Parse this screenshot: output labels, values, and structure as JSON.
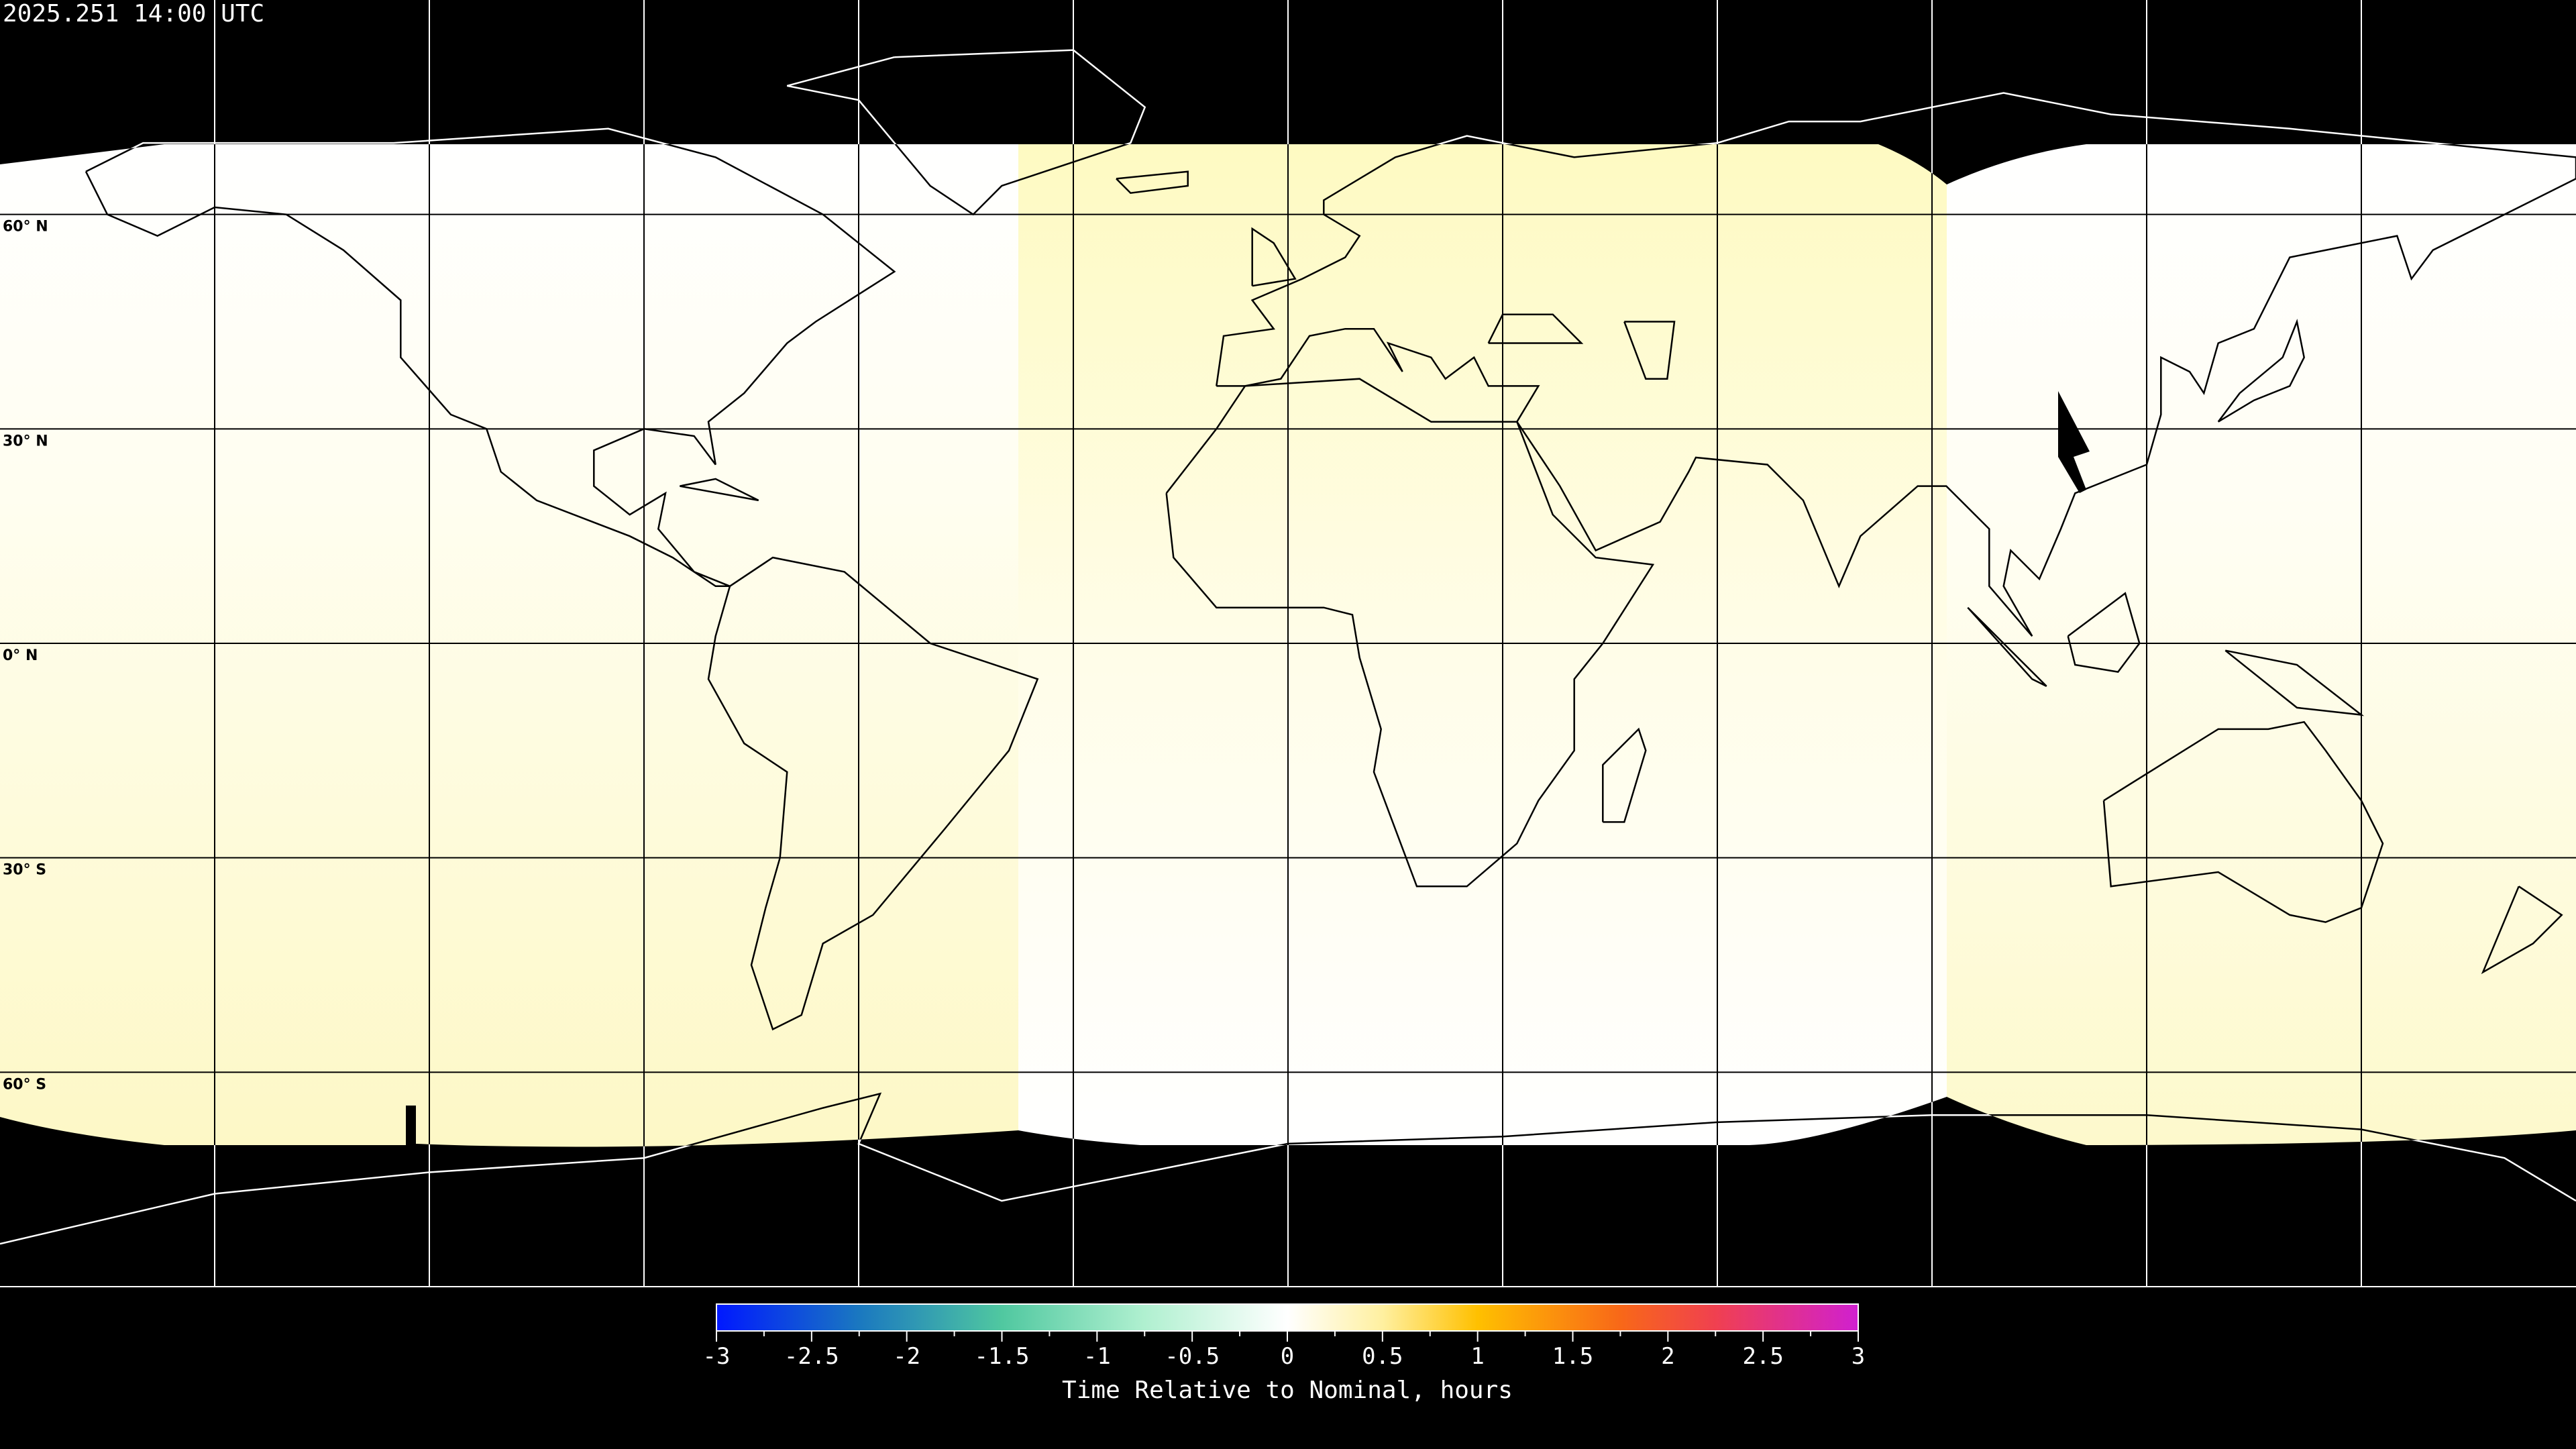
{
  "title": "2025.251 14:00 UTC",
  "map": {
    "projection": "equirectangular",
    "lon_range": [
      -180,
      180
    ],
    "lat_range": [
      -90,
      90
    ],
    "grid_spacing_deg": 30,
    "lat_labels": [
      "60° N",
      "30° N",
      "0° N",
      "30° S",
      "60° S"
    ],
    "no_data_color": "#000000",
    "coverage_colors": {
      "near_zero": "#ffffff",
      "slightly_positive": "#fdf9c8"
    }
  },
  "colorbar": {
    "label": "Time Relative to Nominal, hours",
    "range": [
      -3,
      3
    ],
    "tick_labels": [
      "-3",
      "-2.5",
      "-2",
      "-1.5",
      "-1",
      "-0.5",
      "0",
      "0.5",
      "1",
      "1.5",
      "2",
      "2.5",
      "3"
    ],
    "stops": [
      {
        "value": -3,
        "color": "#0018ff"
      },
      {
        "value": -2.25,
        "color": "#1a78c0"
      },
      {
        "value": -1.5,
        "color": "#50c8a0"
      },
      {
        "value": -0.75,
        "color": "#b0f0d0"
      },
      {
        "value": 0,
        "color": "#ffffff"
      },
      {
        "value": 0.5,
        "color": "#fff0a0"
      },
      {
        "value": 1,
        "color": "#ffc000"
      },
      {
        "value": 1.75,
        "color": "#f86818"
      },
      {
        "value": 2.25,
        "color": "#f04050"
      },
      {
        "value": 3,
        "color": "#d020d0"
      }
    ]
  }
}
